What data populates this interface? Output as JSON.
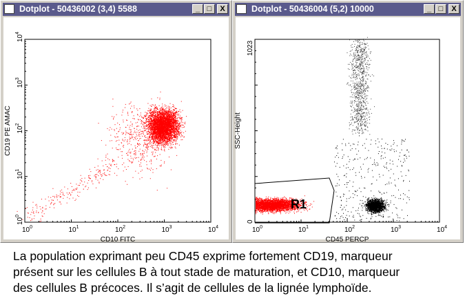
{
  "windows": [
    {
      "title": "Dotplot - 50436002 (3,4) 5588",
      "xlabel": "CD10 FITC",
      "ylabel": "CD19 PE AMAC",
      "xticks": [
        "0",
        "1",
        "2",
        "3",
        "4"
      ],
      "yticks": [
        "0",
        "1",
        "2",
        "3",
        "4"
      ],
      "dot_color": "#ff0000"
    },
    {
      "title": "Dotplot - 50436004 (5,2) 10000",
      "xlabel": "CD45 PERCP",
      "ylabel": "SSC-Height",
      "xticks": [
        "0",
        "1",
        "2",
        "3",
        "4"
      ],
      "yticks": [
        "0",
        "1023"
      ],
      "gate_label": "R1",
      "gate_color": "#ff0000",
      "dot_color": "#000000"
    }
  ],
  "buttons": {
    "minimize": "_",
    "maximize": "□",
    "close": "X"
  },
  "caption": [
    "La population exprimant peu CD45 exprime fortement CD19, marqueur",
    "présent sur les cellules B à tout stade de maturation, et CD10, marqueur",
    "des cellules B précoces. Il s’agit de cellules de la lignée lymphoïde."
  ]
}
